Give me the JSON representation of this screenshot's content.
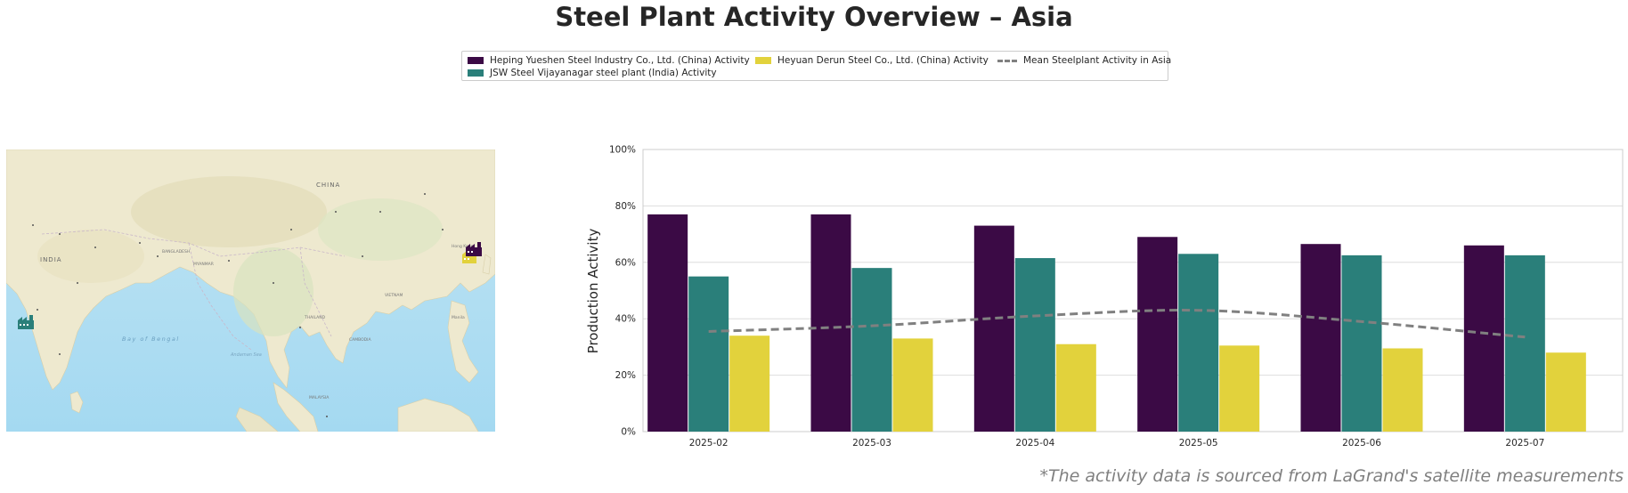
{
  "title": "Steel Plant Activity Overview – Asia",
  "footnote": "*The activity data is sourced from LaGrand's satellite measurements",
  "colors": {
    "heping": "#3b0a45",
    "jsw": "#2a7f7a",
    "heyuan": "#e2d23c",
    "mean": "#808080"
  },
  "map": {
    "labels": {
      "china": "CHINA",
      "india": "INDIA",
      "bay": "Bay of Bengal",
      "thailand": "THAILAND",
      "malaysia": "MALAYSIA",
      "myanmar": "MYANMAR",
      "bangladesh": "BANGLADESH",
      "vietnam": "VIETNAM",
      "cambodia": "CAMBODIA",
      "andaman": "Andaman Sea",
      "hongkong": "Hong Kong",
      "manila": "Manila"
    },
    "markers": [
      {
        "name": "JSW Steel Vijayanagar steel plant (India)",
        "icon": "factory-icon"
      },
      {
        "name": "Heping Yueshen Steel Industry Co., Ltd. (China)",
        "icon": "factory-icon"
      },
      {
        "name": "Heyuan Derun Steel Co., Ltd. (China)",
        "icon": "factory-icon"
      }
    ]
  },
  "chart_data": {
    "type": "bar",
    "categories": [
      "2025-02",
      "2025-03",
      "2025-04",
      "2025-05",
      "2025-06",
      "2025-07"
    ],
    "series": [
      {
        "name": "Heping Yueshen Steel Industry Co., Ltd. (China) Activity",
        "values": [
          77,
          77,
          73,
          69,
          66.5,
          66
        ]
      },
      {
        "name": "JSW Steel Vijayanagar steel plant (India) Activity",
        "values": [
          55,
          58,
          61.5,
          63,
          62.5,
          62.5
        ]
      },
      {
        "name": "Heyuan Derun Steel Co., Ltd. (China) Activity",
        "values": [
          34,
          33,
          31,
          30.5,
          29.5,
          28
        ]
      }
    ],
    "line_series": {
      "name": "Mean Steelplant Activity in Asia",
      "values": [
        35.5,
        37.5,
        41,
        43,
        39,
        33.5
      ],
      "style": "dashed"
    },
    "ylabel": "Production Activity",
    "xlabel": "",
    "ylim": [
      0,
      100
    ],
    "yticks": [
      "0%",
      "20%",
      "40%",
      "60%",
      "80%",
      "100%"
    ],
    "grid": true,
    "legend_placement": "top-center"
  }
}
